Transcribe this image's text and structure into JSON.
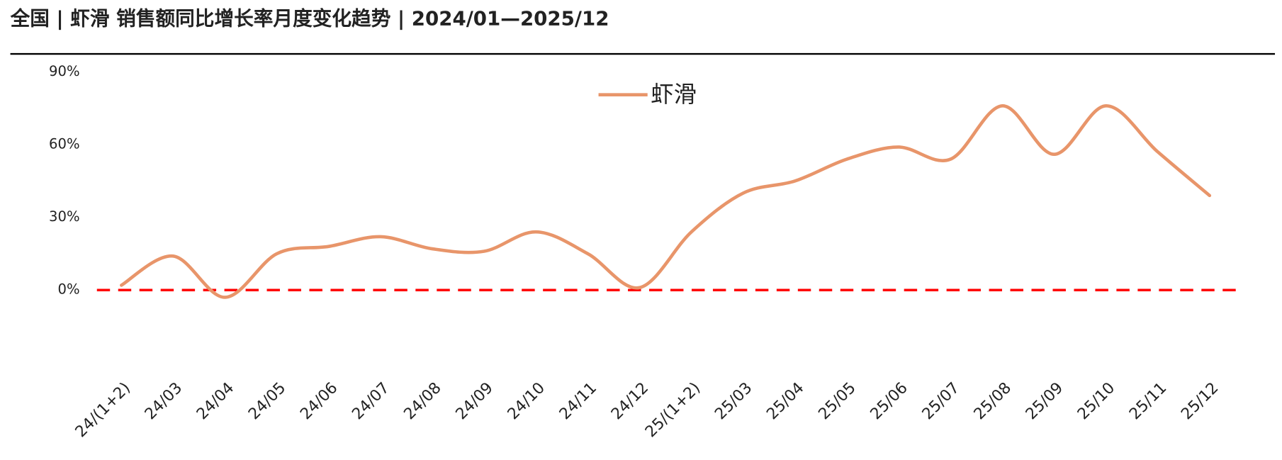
{
  "chart_data": {
    "type": "line",
    "title": "全国 | 虾滑 销售额同比增长率月度变化趋势 | 2024/01—2025/12",
    "categories": [
      "24/(1+2)",
      "24/03",
      "24/04",
      "24/05",
      "24/06",
      "24/07",
      "24/08",
      "24/09",
      "24/10",
      "24/11",
      "24/12",
      "25/(1+2)",
      "25/03",
      "25/04",
      "25/05",
      "25/06",
      "25/07",
      "25/08",
      "25/09",
      "25/10",
      "25/11",
      "25/12"
    ],
    "series": [
      {
        "name": "虾滑",
        "color": "#e8956a",
        "values": [
          2,
          14,
          -3,
          15,
          18,
          22,
          17,
          16,
          24,
          15,
          1,
          24,
          40,
          45,
          54,
          59,
          54,
          76,
          56,
          76,
          57,
          39
        ]
      }
    ],
    "ylim": [
      -30,
      90
    ],
    "yticks": [
      {
        "value": 0,
        "label": "0%"
      },
      {
        "value": 30,
        "label": "30%"
      },
      {
        "value": 60,
        "label": "60%"
      },
      {
        "value": 90,
        "label": "90%"
      }
    ],
    "legend": "top",
    "zero_line": {
      "color": "#ff0000",
      "dashed": true
    },
    "smooth": true
  }
}
